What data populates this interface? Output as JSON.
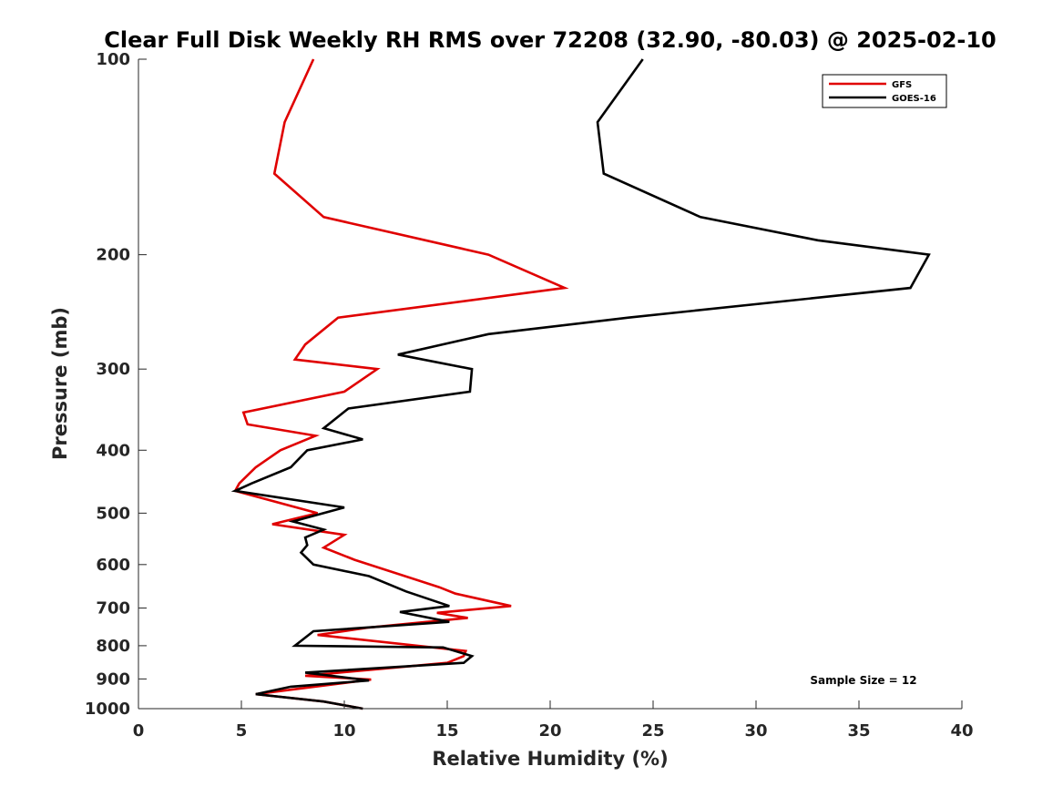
{
  "chart_data": {
    "type": "line",
    "title": "Clear Full Disk Weekly RH RMS over 72208 (32.90, -80.03) @ 2025-02-10",
    "xlabel": "Relative Humidity (%)",
    "ylabel": "Pressure (mb)",
    "xlim": [
      0,
      40
    ],
    "ylim": [
      100,
      1000
    ],
    "yscale": "log",
    "yreversed": true,
    "xticks": [
      0,
      5,
      10,
      15,
      20,
      25,
      30,
      35,
      40
    ],
    "yticks": [
      100,
      200,
      300,
      400,
      500,
      600,
      700,
      800,
      900,
      1000
    ],
    "grid": false,
    "legend_position": "top-right",
    "annotation": "Sample Size = 12",
    "series": [
      {
        "name": "GFS",
        "color": "#e00000",
        "points": [
          [
            8.5,
            100
          ],
          [
            7.1,
            125
          ],
          [
            6.6,
            150
          ],
          [
            9.0,
            175
          ],
          [
            17.0,
            200
          ],
          [
            20.7,
            225
          ],
          [
            9.7,
            250
          ],
          [
            8.1,
            275
          ],
          [
            7.6,
            290
          ],
          [
            11.6,
            300
          ],
          [
            10.0,
            325
          ],
          [
            5.1,
            350
          ],
          [
            5.3,
            365
          ],
          [
            8.6,
            380
          ],
          [
            6.9,
            400
          ],
          [
            5.7,
            425
          ],
          [
            4.9,
            450
          ],
          [
            4.7,
            462
          ],
          [
            8.7,
            500
          ],
          [
            6.5,
            520
          ],
          [
            10.0,
            540
          ],
          [
            9.0,
            565
          ],
          [
            10.5,
            590
          ],
          [
            14.6,
            650
          ],
          [
            15.4,
            665
          ],
          [
            18.1,
            695
          ],
          [
            14.5,
            712
          ],
          [
            16.0,
            725
          ],
          [
            11.2,
            750
          ],
          [
            8.7,
            770
          ],
          [
            15.9,
            815
          ],
          [
            15.8,
            830
          ],
          [
            15.0,
            850
          ],
          [
            8.1,
            890
          ],
          [
            11.3,
            902
          ],
          [
            5.7,
            950
          ],
          [
            9.0,
            975
          ],
          [
            10.9,
            1000
          ]
        ]
      },
      {
        "name": "GOES-16",
        "color": "#000000",
        "points": [
          [
            24.5,
            100
          ],
          [
            22.3,
            125
          ],
          [
            22.6,
            150
          ],
          [
            27.3,
            175
          ],
          [
            33.0,
            190
          ],
          [
            38.4,
            200
          ],
          [
            37.5,
            225
          ],
          [
            23.8,
            250
          ],
          [
            17.0,
            265
          ],
          [
            12.6,
            285
          ],
          [
            16.2,
            300
          ],
          [
            16.1,
            325
          ],
          [
            10.2,
            345
          ],
          [
            9.0,
            370
          ],
          [
            10.9,
            385
          ],
          [
            8.2,
            400
          ],
          [
            7.4,
            425
          ],
          [
            5.5,
            450
          ],
          [
            4.7,
            462
          ],
          [
            10.0,
            490
          ],
          [
            7.5,
            515
          ],
          [
            9.0,
            530
          ],
          [
            8.1,
            545
          ],
          [
            8.2,
            560
          ],
          [
            7.9,
            575
          ],
          [
            8.5,
            600
          ],
          [
            11.2,
            625
          ],
          [
            13.0,
            660
          ],
          [
            15.1,
            695
          ],
          [
            12.7,
            710
          ],
          [
            15.1,
            735
          ],
          [
            8.5,
            760
          ],
          [
            7.6,
            800
          ],
          [
            14.8,
            805
          ],
          [
            16.2,
            830
          ],
          [
            15.8,
            850
          ],
          [
            8.1,
            880
          ],
          [
            11.2,
            905
          ],
          [
            7.4,
            925
          ],
          [
            5.7,
            950
          ],
          [
            9.0,
            975
          ],
          [
            10.9,
            1000
          ]
        ]
      }
    ]
  }
}
